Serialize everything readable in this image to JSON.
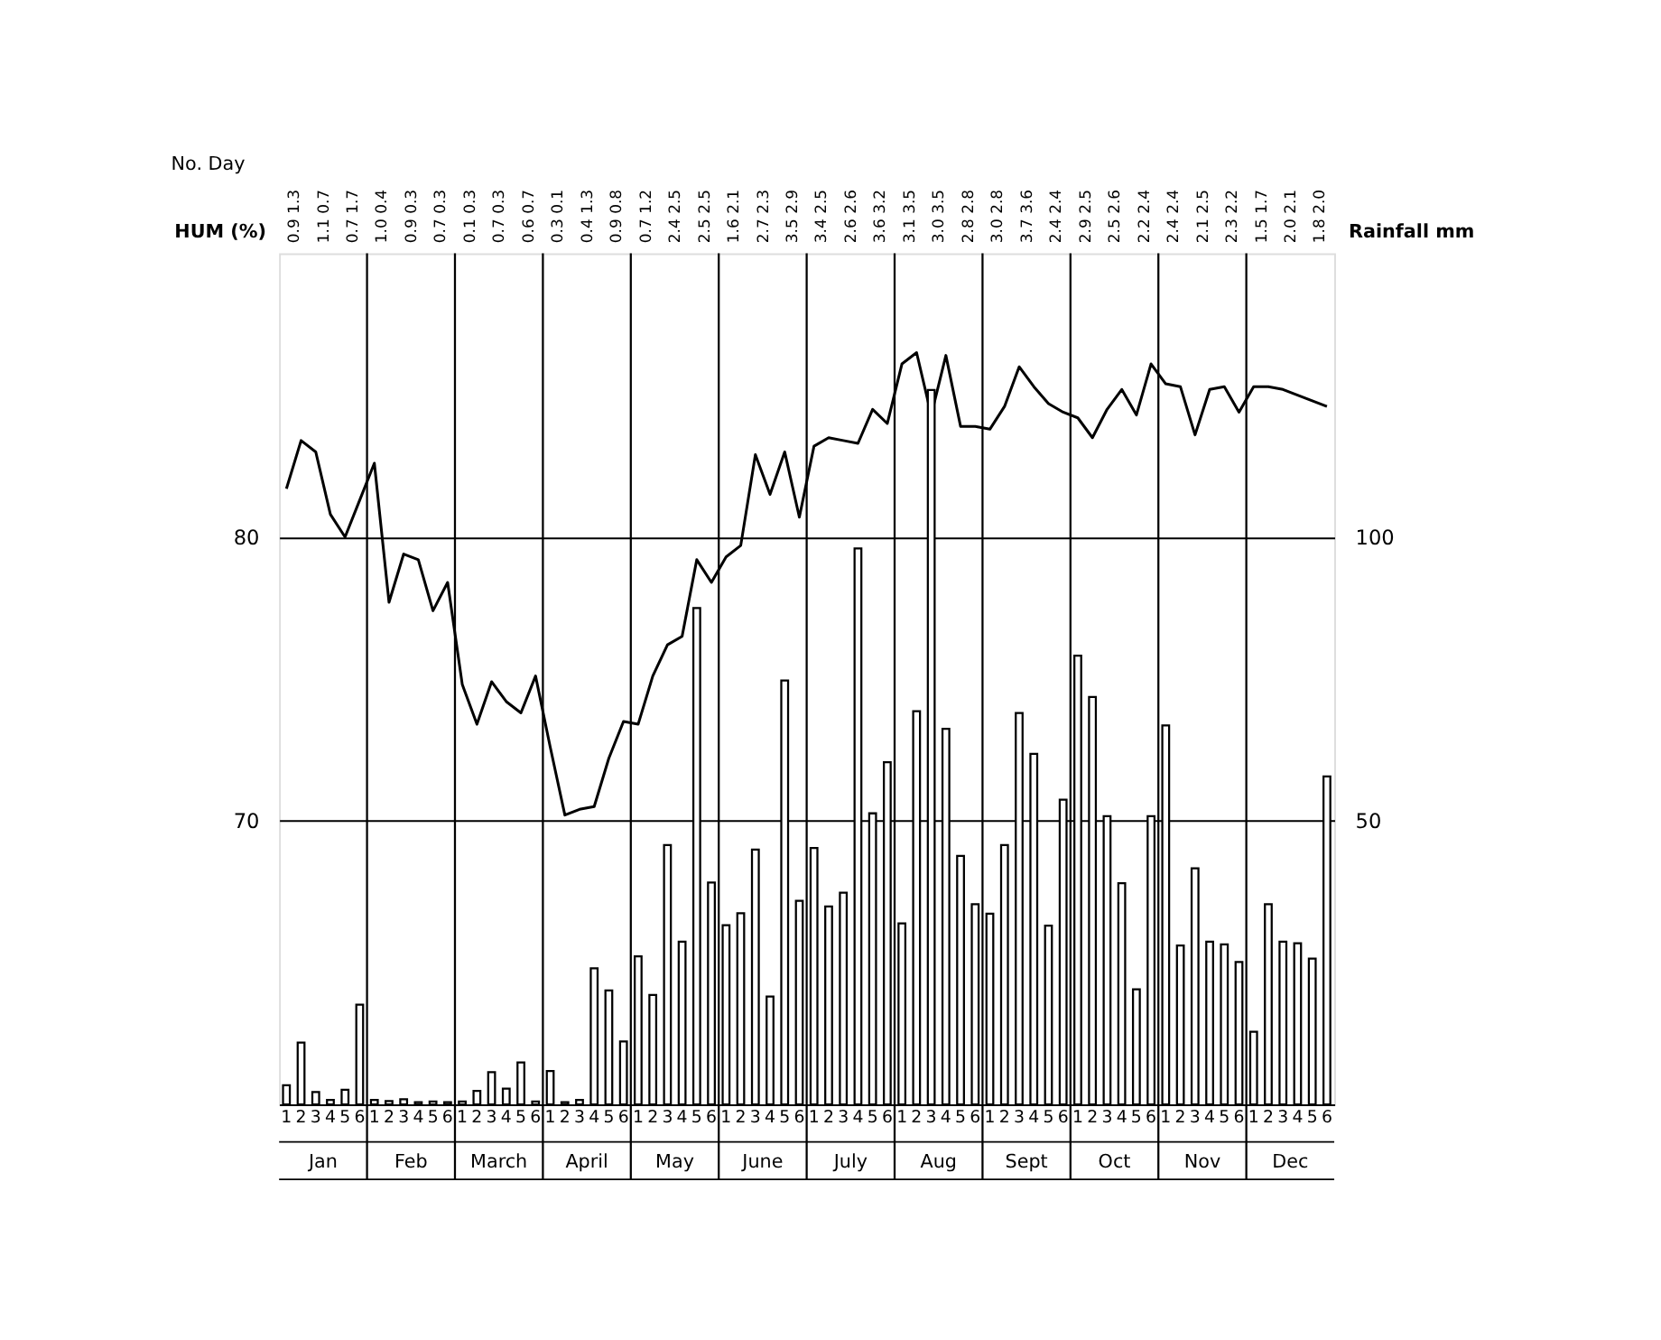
{
  "chart_data": {
    "type": "line",
    "ylabel": "HUM (%)",
    "y2label": "Rainfall mm",
    "categories": [
      "1",
      "2",
      "3",
      "4",
      "5",
      "6",
      "1",
      "2",
      "3",
      "4",
      "5",
      "6",
      "1",
      "2",
      "3",
      "4",
      "5",
      "6",
      "1",
      "2",
      "3",
      "4",
      "5",
      "6",
      "1",
      "2",
      "3",
      "4",
      "5",
      "6",
      "1",
      "2",
      "3",
      "4",
      "5",
      "6",
      "1",
      "2",
      "3",
      "4",
      "5",
      "6",
      "1",
      "2",
      "3",
      "4",
      "5",
      "6",
      "1",
      "2",
      "3",
      "4",
      "5",
      "6",
      "1",
      "2",
      "3",
      "4",
      "5",
      "6",
      "1",
      "2",
      "3",
      "4",
      "5",
      "6",
      "1",
      "2",
      "3",
      "4",
      "5",
      "6"
    ],
    "series": [
      {
        "color": "#000000",
        "values": [
          81.7,
          83.4,
          83.0,
          80.8,
          80.0,
          81.3,
          82.6,
          77.7,
          79.4,
          79.2,
          77.4,
          78.4,
          74.8,
          73.4,
          74.9,
          74.2,
          73.8,
          75.1,
          72.6,
          70.2,
          70.4,
          70.5,
          72.2,
          73.5,
          73.4,
          75.1,
          76.2,
          76.5,
          79.2,
          78.4,
          79.3,
          79.7,
          82.9,
          81.5,
          83.0,
          80.7,
          83.2,
          83.5,
          83.4,
          83.3,
          84.5,
          84.0,
          86.1,
          86.5,
          84.3,
          86.4,
          83.9,
          83.9,
          83.8,
          84.6,
          86.0,
          85.3,
          84.7,
          84.4,
          84.2,
          83.5,
          84.5,
          85.2,
          84.3,
          86.1,
          85.4,
          85.3,
          83.6,
          85.2,
          85.3,
          84.4,
          85.3,
          85.3,
          85.2,
          85.0,
          84.8,
          84.6
        ]
      },
      {
        "type": "bar",
        "axis": "y2",
        "color": "#000000",
        "values": [
          3.4,
          10.9,
          2.2,
          0.8,
          2.6,
          17.6,
          0.8,
          0.6,
          0.9,
          0.4,
          0.5,
          0.4,
          0.5,
          2.4,
          5.7,
          2.8,
          7.4,
          0.5,
          5.9,
          0.4,
          0.8,
          24.0,
          20.1,
          11.1,
          26.1,
          19.3,
          45.7,
          28.7,
          87.5,
          39.1,
          31.6,
          33.7,
          44.9,
          19.0,
          74.7,
          35.9,
          45.2,
          34.9,
          37.3,
          98.0,
          51.3,
          60.3,
          31.9,
          69.3,
          125.9,
          66.2,
          43.8,
          35.3,
          33.6,
          45.7,
          69.0,
          61.8,
          31.5,
          53.7,
          79.1,
          71.8,
          50.8,
          39.0,
          20.3,
          50.8,
          66.8,
          28.0,
          41.6,
          28.7,
          28.2,
          25.1,
          12.8,
          35.3,
          28.7,
          28.4,
          25.7,
          57.8
        ]
      }
    ],
    "ylim": [
      60,
      90
    ],
    "yticks": [
      70,
      80
    ],
    "y2lim": [
      0,
      150
    ],
    "y2ticks": [
      50,
      100
    ],
    "grid": "y",
    "annotations": [
      "No. Day",
      "0.9 1.3",
      "1.1 0.7",
      "0.7 1.7",
      "1.0 0.4",
      "0.9 0.3",
      "0.7 0.3",
      "0.1 0.3",
      "0.7 0.3",
      "0.6 0.7",
      "0.3 0.1",
      "0.4 1.3",
      "0.9 0.8",
      "0.7 1.2",
      "2.4 2.5",
      "2.5 2.5",
      "1.6 2.1",
      "2.7 2.3",
      "3.5 2.9",
      "3.4 2.5",
      "2.6 2.6",
      "3.6 3.2",
      "3.1 3.5",
      "3.0 3.5",
      "2.8 2.8",
      "3.0 2.8",
      "3.7 3.6",
      "2.4 2.4",
      "2.9 2.5",
      "2.5 2.6",
      "2.2 2.4",
      "2.4 2.4",
      "2.1 2.5",
      "2.3 2.2",
      "1.5 1.7",
      "2.0 2.1",
      "1.8 2.0",
      "Jan",
      "Feb",
      "March",
      "April",
      "May",
      "June",
      "July",
      "Aug",
      "Sept",
      "Oct",
      "Nov",
      "Dec"
    ]
  }
}
